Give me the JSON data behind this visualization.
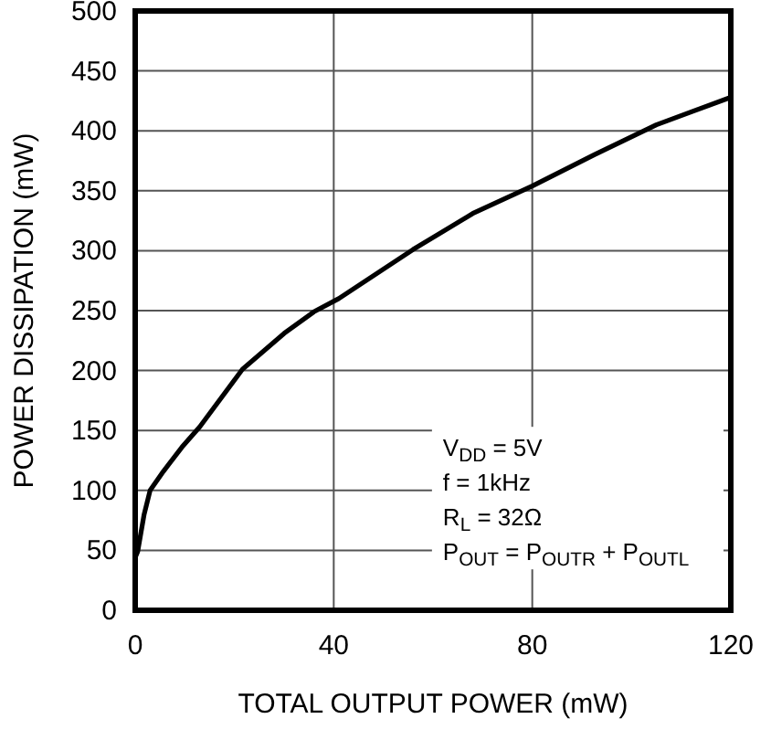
{
  "chart_data": {
    "type": "line",
    "xlabel": "TOTAL OUTPUT POWER (mW)",
    "ylabel": "POWER DISSIPATION (mW)",
    "xlim": [
      0,
      120
    ],
    "ylim": [
      0,
      500
    ],
    "xticks": [
      0,
      40,
      80,
      120
    ],
    "yticks": [
      0,
      50,
      100,
      150,
      200,
      250,
      300,
      350,
      400,
      450,
      500
    ],
    "grid": true,
    "marker": "none",
    "line_style": "solid",
    "annotations": [
      "V$_{DD}$ = 5V",
      "f = 1kHz",
      "R$_{L}$ = 32Ω",
      "P$_{OUT}$ = P$_{OUTR}$ + P$_{OUTL}$"
    ],
    "series": [
      {
        "color": "#000000",
        "x": [
          0,
          0.5,
          1.8,
          3,
          5.7,
          9.4,
          13,
          21.6,
          30,
          36,
          41,
          56,
          68,
          80,
          92.5,
          105,
          120
        ],
        "values": [
          44,
          49,
          80,
          100,
          116,
          136,
          153,
          201,
          231,
          249,
          260,
          301,
          331,
          354,
          380,
          405,
          428
        ]
      }
    ]
  }
}
